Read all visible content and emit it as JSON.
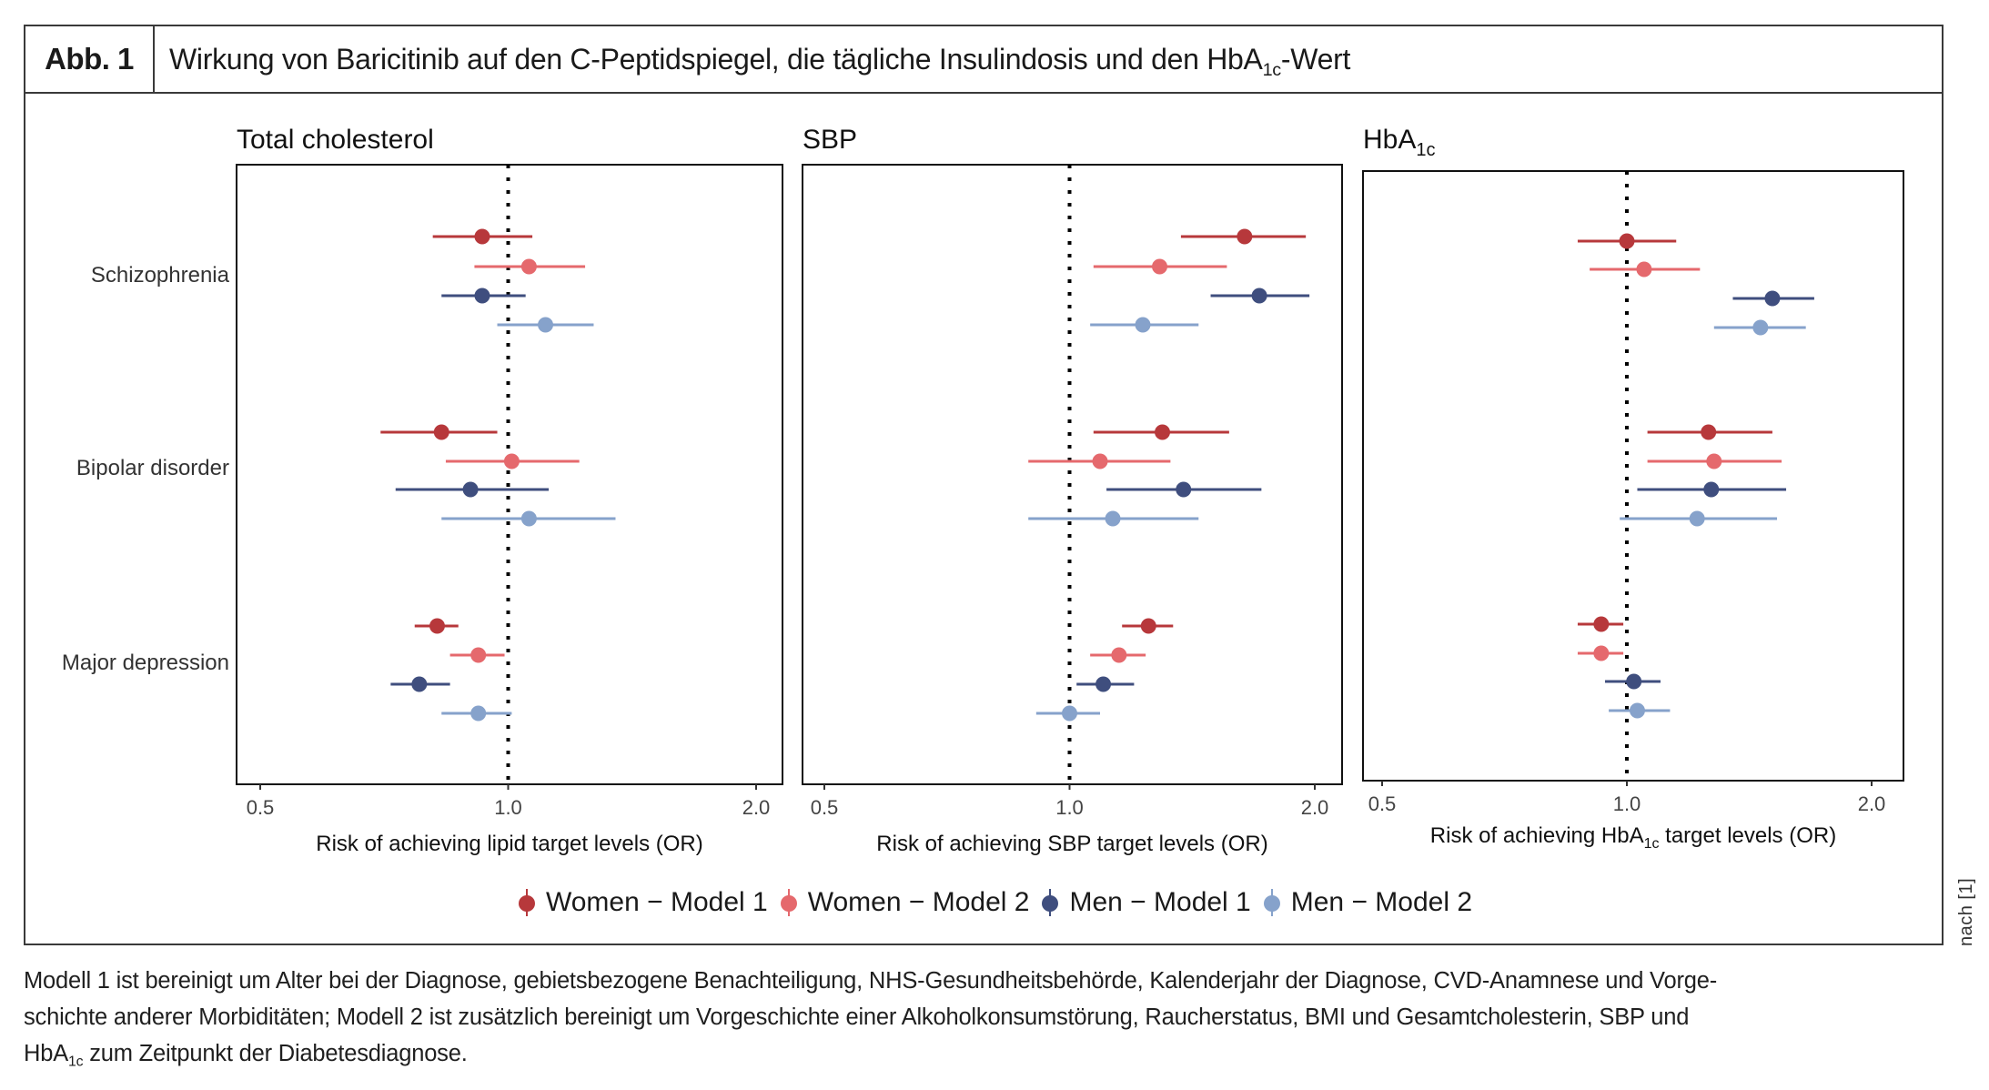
{
  "header": {
    "figure_label": "Abb. 1",
    "title_main": "Wirkung von Baricitinib auf den C-Peptidspiegel, die tägliche Insulindosis und den HbA",
    "title_sub": "1c",
    "title_tail": "-Wert"
  },
  "side_note": "nach [1]",
  "caption": {
    "line1": "Modell 1 ist bereinigt um Alter bei der Diagnose, gebietsbezogene Benachteiligung, NHS-Gesundheitsbehörde, Kalenderjahr der Diagnose, CVD-Anamnese und Vorge-",
    "line2": "schichte anderer Morbiditäten; Modell 2 ist zusätzlich bereinigt um Vorgeschichte einer Alkoholkonsumstörung, Raucherstatus, BMI und Gesamtcholesterin, SBP und",
    "line3_pre": "HbA",
    "line3_sub": "1c",
    "line3_post": " zum Zeitpunkt der Diabetesdiagnose."
  },
  "colors": {
    "women_model1": "#b7383b",
    "women_model2": "#e5696d",
    "men_model1": "#3f4e7e",
    "men_model2": "#86a2cb"
  },
  "legend": [
    {
      "label": "Women − Model 1",
      "key": "women_model1"
    },
    {
      "label": "Women − Model 2",
      "key": "women_model2"
    },
    {
      "label": "Men − Model 1",
      "key": "men_model1"
    },
    {
      "label": "Men − Model 2",
      "key": "men_model2"
    }
  ],
  "chart_data": [
    {
      "type": "scatter",
      "subtype": "forest-plot",
      "title": "Total cholesterol",
      "title_sub": "",
      "xlabel": "Risk of achieving lipid target levels (OR)",
      "xlabel_sub": "",
      "xlabel_tail": "",
      "xscale": "log",
      "xlim": [
        0.48,
        2.15
      ],
      "xticks": [
        0.5,
        1.0,
        2.0
      ],
      "xtick_labels": [
        "0.5",
        "1.0",
        "2.0"
      ],
      "reference_line": 1.0,
      "categories": [
        "Schizophrenia",
        "Bipolar disorder",
        "Major depression"
      ],
      "series": [
        {
          "name": "Women − Model 1",
          "key": "women_model1",
          "or": [
            0.93,
            0.83,
            0.82
          ],
          "ci_low": [
            0.81,
            0.7,
            0.77
          ],
          "ci_high": [
            1.07,
            0.97,
            0.87
          ]
        },
        {
          "name": "Women − Model 2",
          "key": "women_model2",
          "or": [
            1.06,
            1.01,
            0.92
          ],
          "ci_low": [
            0.91,
            0.84,
            0.85
          ],
          "ci_high": [
            1.24,
            1.22,
            0.99
          ]
        },
        {
          "name": "Men − Model 1",
          "key": "men_model1",
          "or": [
            0.93,
            0.9,
            0.78
          ],
          "ci_low": [
            0.83,
            0.73,
            0.72
          ],
          "ci_high": [
            1.05,
            1.12,
            0.85
          ]
        },
        {
          "name": "Men − Model 2",
          "key": "men_model2",
          "or": [
            1.11,
            1.06,
            0.92
          ],
          "ci_low": [
            0.97,
            0.83,
            0.83
          ],
          "ci_high": [
            1.27,
            1.35,
            1.01
          ]
        }
      ]
    },
    {
      "type": "scatter",
      "subtype": "forest-plot",
      "title": "SBP",
      "title_sub": "",
      "xlabel": "Risk of achieving SBP target levels (OR)",
      "xlabel_sub": "",
      "xlabel_tail": "",
      "xscale": "log",
      "xlim": [
        0.48,
        2.15
      ],
      "xticks": [
        0.5,
        1.0,
        2.0
      ],
      "xtick_labels": [
        "0.5",
        "1.0",
        "2.0"
      ],
      "reference_line": 1.0,
      "categories": [
        "Schizophrenia",
        "Bipolar disorder",
        "Major depression"
      ],
      "series": [
        {
          "name": "Women − Model 1",
          "key": "women_model1",
          "or": [
            1.64,
            1.3,
            1.25
          ],
          "ci_low": [
            1.37,
            1.07,
            1.16
          ],
          "ci_high": [
            1.95,
            1.57,
            1.34
          ]
        },
        {
          "name": "Women − Model 2",
          "key": "women_model2",
          "or": [
            1.29,
            1.09,
            1.15
          ],
          "ci_low": [
            1.07,
            0.89,
            1.06
          ],
          "ci_high": [
            1.56,
            1.33,
            1.24
          ]
        },
        {
          "name": "Men − Model 1",
          "key": "men_model1",
          "or": [
            1.71,
            1.38,
            1.1
          ],
          "ci_low": [
            1.49,
            1.11,
            1.02
          ],
          "ci_high": [
            1.97,
            1.72,
            1.2
          ]
        },
        {
          "name": "Men − Model 2",
          "key": "men_model2",
          "or": [
            1.23,
            1.13,
            1.0
          ],
          "ci_low": [
            1.06,
            0.89,
            0.91
          ],
          "ci_high": [
            1.44,
            1.44,
            1.09
          ]
        }
      ]
    },
    {
      "type": "scatter",
      "subtype": "forest-plot",
      "title": "HbA",
      "title_sub": "1c",
      "xlabel": "Risk of achieving HbA",
      "xlabel_sub": "1c",
      "xlabel_tail": " target levels (OR)",
      "xscale": "log",
      "xlim": [
        0.48,
        2.15
      ],
      "xticks": [
        0.5,
        1.0,
        2.0
      ],
      "xtick_labels": [
        "0.5",
        "1.0",
        "2.0"
      ],
      "reference_line": 1.0,
      "categories": [
        "Schizophrenia",
        "Bipolar disorder",
        "Major depression"
      ],
      "series": [
        {
          "name": "Women − Model 1",
          "key": "women_model1",
          "or": [
            1.0,
            1.26,
            0.93
          ],
          "ci_low": [
            0.87,
            1.06,
            0.87
          ],
          "ci_high": [
            1.15,
            1.51,
            0.99
          ]
        },
        {
          "name": "Women − Model 2",
          "key": "women_model2",
          "or": [
            1.05,
            1.28,
            0.93
          ],
          "ci_low": [
            0.9,
            1.06,
            0.87
          ],
          "ci_high": [
            1.23,
            1.55,
            0.99
          ]
        },
        {
          "name": "Men − Model 1",
          "key": "men_model1",
          "or": [
            1.51,
            1.27,
            1.02
          ],
          "ci_low": [
            1.35,
            1.03,
            0.94
          ],
          "ci_high": [
            1.7,
            1.57,
            1.1
          ]
        },
        {
          "name": "Men − Model 2",
          "key": "men_model2",
          "or": [
            1.46,
            1.22,
            1.03
          ],
          "ci_low": [
            1.28,
            0.98,
            0.95
          ],
          "ci_high": [
            1.66,
            1.53,
            1.13
          ]
        }
      ]
    }
  ]
}
